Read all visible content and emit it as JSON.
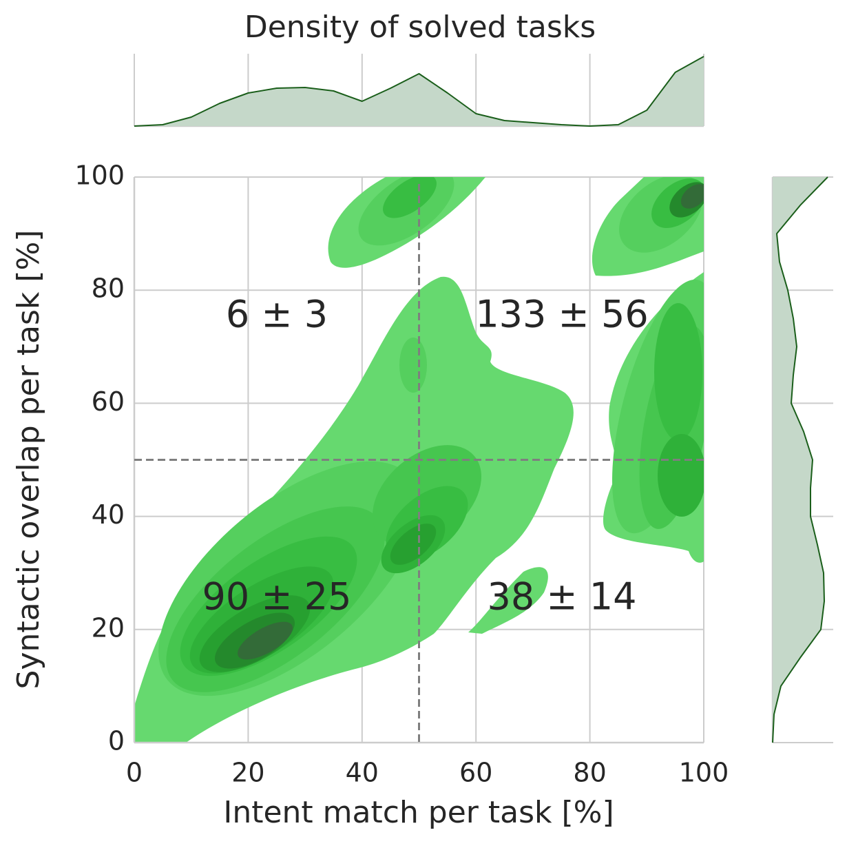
{
  "chart_data": {
    "type": "kde",
    "title": "Density of solved tasks",
    "x_label": "Intent match per task [%]",
    "y_label": "Syntactic overlap per task [%]",
    "xlim": [
      0,
      100
    ],
    "ylim": [
      0,
      100
    ],
    "xticks": [
      0,
      20,
      40,
      60,
      80,
      100
    ],
    "yticks": [
      0,
      20,
      40,
      60,
      80,
      100
    ],
    "grid": true,
    "reference_lines": {
      "x": 50,
      "y": 50
    },
    "annotations": [
      "6 ± 3",
      "133 ± 56",
      "90 ± 25",
      "38 ± 14"
    ],
    "fill_color": "#c5d8c9",
    "line_color": "#1a5e1a",
    "x_density": {
      "x": [
        0,
        5,
        10,
        15,
        20,
        25,
        30,
        35,
        40,
        45,
        50,
        55,
        60,
        65,
        70,
        75,
        80,
        85,
        90,
        95,
        100
      ],
      "values": [
        0,
        2,
        13,
        33,
        48,
        55,
        56,
        51,
        36,
        55,
        76,
        48,
        18,
        8,
        5,
        2,
        0,
        2,
        23,
        78,
        101
      ]
    },
    "y_density": {
      "y": [
        0,
        5,
        10,
        15,
        20,
        25,
        30,
        35,
        40,
        45,
        50,
        55,
        60,
        65,
        70,
        75,
        80,
        85,
        90,
        95,
        100
      ],
      "values": [
        0,
        2,
        12,
        40,
        70,
        75,
        74,
        65,
        55,
        55,
        58,
        45,
        27,
        30,
        35,
        30,
        22,
        10,
        6,
        40,
        80
      ]
    }
  }
}
